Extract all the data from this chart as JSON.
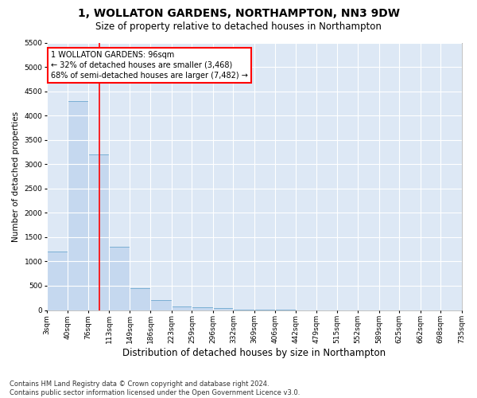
{
  "title": "1, WOLLATON GARDENS, NORTHAMPTON, NN3 9DW",
  "subtitle": "Size of property relative to detached houses in Northampton",
  "xlabel": "Distribution of detached houses by size in Northampton",
  "ylabel": "Number of detached properties",
  "bar_color": "#c5d8ef",
  "bar_edge_color": "#7aafd4",
  "background_color": "#dde8f5",
  "grid_color": "#ffffff",
  "redline_x": 96,
  "annotation_text": "1 WOLLATON GARDENS: 96sqm\n← 32% of detached houses are smaller (3,468)\n68% of semi-detached houses are larger (7,482) →",
  "bins": [
    3,
    40,
    76,
    113,
    149,
    186,
    223,
    259,
    296,
    332,
    369,
    406,
    442,
    479,
    515,
    552,
    589,
    625,
    662,
    698,
    735
  ],
  "bin_labels": [
    "3sqm",
    "40sqm",
    "76sqm",
    "113sqm",
    "149sqm",
    "186sqm",
    "223sqm",
    "259sqm",
    "296sqm",
    "332sqm",
    "369sqm",
    "406sqm",
    "442sqm",
    "479sqm",
    "515sqm",
    "552sqm",
    "589sqm",
    "625sqm",
    "662sqm",
    "698sqm",
    "735sqm"
  ],
  "bar_heights": [
    1200,
    4300,
    3200,
    1300,
    450,
    200,
    80,
    60,
    40,
    10,
    5,
    3,
    0,
    0,
    0,
    0,
    0,
    0,
    0,
    0
  ],
  "ylim": [
    0,
    5500
  ],
  "yticks": [
    0,
    500,
    1000,
    1500,
    2000,
    2500,
    3000,
    3500,
    4000,
    4500,
    5000,
    5500
  ],
  "footnote": "Contains HM Land Registry data © Crown copyright and database right 2024.\nContains public sector information licensed under the Open Government Licence v3.0.",
  "title_fontsize": 10,
  "subtitle_fontsize": 8.5,
  "xlabel_fontsize": 8.5,
  "ylabel_fontsize": 7.5,
  "tick_fontsize": 6.5,
  "annotation_fontsize": 7,
  "footnote_fontsize": 6
}
